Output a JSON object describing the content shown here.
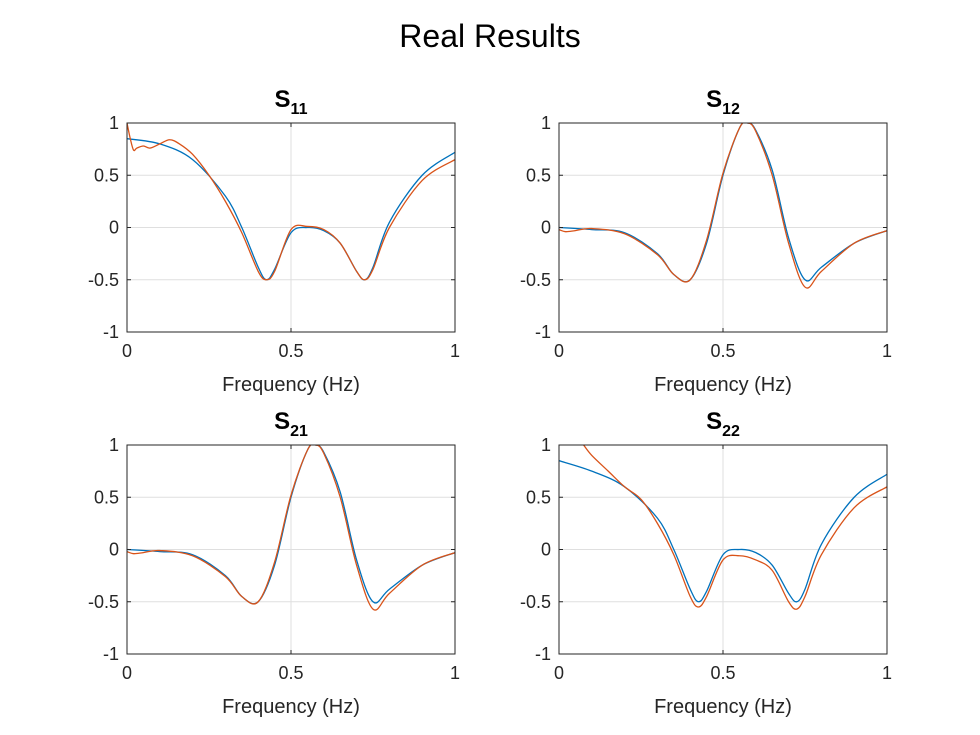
{
  "figure": {
    "title": "Real Results"
  },
  "chart_data": [
    {
      "type": "line",
      "title": "S11",
      "title_main": "S",
      "title_sub": "11",
      "xlabel": "Frequency (Hz)",
      "ylabel": "",
      "xlim": [
        0,
        1
      ],
      "ylim": [
        -1,
        1
      ],
      "xticks": [
        "0",
        "0.5",
        "1"
      ],
      "yticks": [
        "1",
        "0.5",
        "0",
        "-0.5",
        "-1"
      ],
      "grid": true,
      "series": [
        {
          "color": "#0072BD",
          "x": [
            0,
            0.1,
            0.2,
            0.3,
            0.35,
            0.4,
            0.425,
            0.45,
            0.5,
            0.55,
            0.6,
            0.65,
            0.7,
            0.725,
            0.75,
            0.8,
            0.9,
            1
          ],
          "y": [
            0.85,
            0.8,
            0.65,
            0.3,
            0.0,
            -0.38,
            -0.5,
            -0.4,
            -0.05,
            0.0,
            -0.03,
            -0.15,
            -0.42,
            -0.5,
            -0.38,
            0.05,
            0.5,
            0.72
          ]
        },
        {
          "color": "#D95319",
          "x": [
            0,
            0.01,
            0.02,
            0.03,
            0.05,
            0.07,
            0.1,
            0.13,
            0.16,
            0.2,
            0.25,
            0.3,
            0.35,
            0.4,
            0.425,
            0.45,
            0.5,
            0.55,
            0.6,
            0.65,
            0.7,
            0.725,
            0.75,
            0.8,
            0.9,
            1
          ],
          "y": [
            1.0,
            0.85,
            0.74,
            0.76,
            0.78,
            0.76,
            0.8,
            0.84,
            0.8,
            0.7,
            0.5,
            0.25,
            -0.05,
            -0.42,
            -0.5,
            -0.42,
            -0.02,
            0.01,
            -0.02,
            -0.15,
            -0.42,
            -0.5,
            -0.4,
            0.0,
            0.45,
            0.65
          ]
        }
      ]
    },
    {
      "type": "line",
      "title": "S12",
      "title_main": "S",
      "title_sub": "12",
      "xlabel": "Frequency (Hz)",
      "ylabel": "",
      "xlim": [
        0,
        1
      ],
      "ylim": [
        -1,
        1
      ],
      "xticks": [
        "0",
        "0.5",
        "1"
      ],
      "yticks": [
        "1",
        "0.5",
        "0",
        "-0.5",
        "-1"
      ],
      "grid": true,
      "series": [
        {
          "color": "#0072BD",
          "x": [
            0,
            0.1,
            0.2,
            0.3,
            0.35,
            0.4,
            0.45,
            0.5,
            0.55,
            0.575,
            0.6,
            0.65,
            0.7,
            0.75,
            0.8,
            0.9,
            1
          ],
          "y": [
            0.0,
            -0.02,
            -0.05,
            -0.25,
            -0.45,
            -0.5,
            -0.15,
            0.5,
            0.95,
            1.0,
            0.93,
            0.55,
            -0.1,
            -0.5,
            -0.38,
            -0.15,
            -0.03
          ]
        },
        {
          "color": "#D95319",
          "x": [
            0,
            0.02,
            0.05,
            0.1,
            0.2,
            0.3,
            0.35,
            0.4,
            0.45,
            0.5,
            0.55,
            0.575,
            0.6,
            0.65,
            0.7,
            0.75,
            0.8,
            0.9,
            1
          ],
          "y": [
            -0.02,
            -0.04,
            -0.03,
            -0.01,
            -0.06,
            -0.26,
            -0.45,
            -0.5,
            -0.12,
            0.52,
            0.95,
            1.0,
            0.92,
            0.5,
            -0.15,
            -0.57,
            -0.42,
            -0.15,
            -0.03
          ]
        }
      ]
    },
    {
      "type": "line",
      "title": "S21",
      "title_main": "S",
      "title_sub": "21",
      "xlabel": "Frequency (Hz)",
      "ylabel": "",
      "xlim": [
        0,
        1
      ],
      "ylim": [
        -1,
        1
      ],
      "xticks": [
        "0",
        "0.5",
        "1"
      ],
      "yticks": [
        "1",
        "0.5",
        "0",
        "-0.5",
        "-1"
      ],
      "grid": true,
      "series": [
        {
          "color": "#0072BD",
          "x": [
            0,
            0.1,
            0.2,
            0.3,
            0.35,
            0.4,
            0.45,
            0.5,
            0.55,
            0.575,
            0.6,
            0.65,
            0.7,
            0.75,
            0.8,
            0.9,
            1
          ],
          "y": [
            0.0,
            -0.02,
            -0.05,
            -0.25,
            -0.45,
            -0.5,
            -0.15,
            0.5,
            0.95,
            1.0,
            0.93,
            0.55,
            -0.1,
            -0.5,
            -0.38,
            -0.15,
            -0.03
          ]
        },
        {
          "color": "#D95319",
          "x": [
            0,
            0.02,
            0.05,
            0.1,
            0.2,
            0.3,
            0.35,
            0.4,
            0.45,
            0.5,
            0.55,
            0.575,
            0.6,
            0.65,
            0.7,
            0.75,
            0.8,
            0.9,
            1
          ],
          "y": [
            -0.02,
            -0.04,
            -0.03,
            -0.01,
            -0.06,
            -0.26,
            -0.45,
            -0.5,
            -0.12,
            0.52,
            0.95,
            1.0,
            0.92,
            0.5,
            -0.15,
            -0.57,
            -0.42,
            -0.15,
            -0.03
          ]
        }
      ]
    },
    {
      "type": "line",
      "title": "S22",
      "title_main": "S",
      "title_sub": "22",
      "xlabel": "Frequency (Hz)",
      "ylabel": "",
      "xlim": [
        0,
        1
      ],
      "ylim": [
        -1,
        1
      ],
      "xticks": [
        "0",
        "0.5",
        "1"
      ],
      "yticks": [
        "1",
        "0.5",
        "0",
        "-0.5",
        "-1"
      ],
      "grid": true,
      "series": [
        {
          "color": "#0072BD",
          "x": [
            0,
            0.1,
            0.2,
            0.3,
            0.35,
            0.4,
            0.425,
            0.45,
            0.5,
            0.55,
            0.6,
            0.65,
            0.7,
            0.725,
            0.75,
            0.8,
            0.9,
            1
          ],
          "y": [
            0.85,
            0.75,
            0.6,
            0.3,
            0.0,
            -0.38,
            -0.5,
            -0.4,
            -0.05,
            0.0,
            -0.03,
            -0.15,
            -0.42,
            -0.5,
            -0.38,
            0.05,
            0.5,
            0.72
          ]
        },
        {
          "color": "#D95319",
          "x": [
            0.075,
            0.1,
            0.15,
            0.2,
            0.25,
            0.3,
            0.35,
            0.4,
            0.425,
            0.45,
            0.5,
            0.55,
            0.6,
            0.65,
            0.7,
            0.725,
            0.75,
            0.8,
            0.9,
            1
          ],
          "y": [
            1.0,
            0.9,
            0.75,
            0.6,
            0.48,
            0.25,
            -0.05,
            -0.45,
            -0.55,
            -0.45,
            -0.1,
            -0.06,
            -0.1,
            -0.2,
            -0.5,
            -0.57,
            -0.45,
            -0.05,
            0.4,
            0.6
          ]
        }
      ]
    }
  ]
}
